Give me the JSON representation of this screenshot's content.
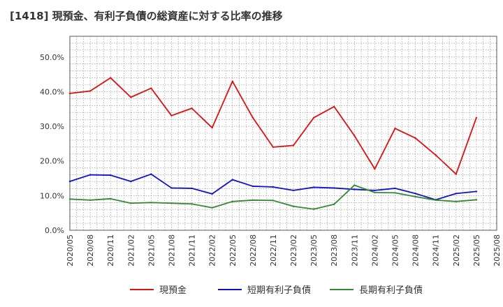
{
  "page": {
    "title": "[1418]  現預金、有利子負債の総資産に対する比率の推移"
  },
  "chart_data": {
    "type": "line",
    "title": "[1418]  現預金、有利子負債の総資産に対する比率の推移",
    "xlabel": "",
    "ylabel": "",
    "ylim": [
      0,
      0.56
    ],
    "yticks": [
      0,
      0.1,
      0.2,
      0.3,
      0.4,
      0.5
    ],
    "ytick_labels": [
      "0.0%",
      "10.0%",
      "20.0%",
      "30.0%",
      "40.0%",
      "50.0%"
    ],
    "grid": true,
    "legend_position": "bottom",
    "categories": [
      "2020/05",
      "2020/08",
      "2020/11",
      "2021/02",
      "2021/05",
      "2021/08",
      "2021/11",
      "2022/02",
      "2022/05",
      "2022/08",
      "2022/11",
      "2023/02",
      "2023/05",
      "2023/08",
      "2023/11",
      "2024/02",
      "2024/05",
      "2024/08",
      "2024/11",
      "2025/02",
      "2025/05",
      "2025/08"
    ],
    "series": [
      {
        "name": "現預金",
        "color": "#dd1111",
        "values": [
          0.395,
          0.402,
          0.44,
          0.384,
          0.41,
          0.331,
          0.352,
          0.296,
          0.43,
          0.325,
          0.24,
          0.245,
          0.325,
          0.357,
          0.273,
          0.177,
          0.294,
          0.266,
          0.217,
          0.162,
          0.325,
          null
        ]
      },
      {
        "name": "短期有利子負債",
        "color": "#1111cc",
        "values": [
          0.141,
          0.16,
          0.159,
          0.141,
          0.162,
          0.122,
          0.121,
          0.105,
          0.146,
          0.127,
          0.125,
          0.115,
          0.124,
          0.122,
          0.118,
          0.115,
          0.121,
          0.106,
          0.088,
          0.106,
          0.112,
          null
        ]
      },
      {
        "name": "長期有利子負債",
        "color": "#338833",
        "values": [
          0.09,
          0.087,
          0.091,
          0.078,
          0.08,
          0.078,
          0.076,
          0.065,
          0.083,
          0.087,
          0.086,
          0.069,
          0.061,
          0.075,
          0.13,
          0.109,
          0.108,
          0.097,
          0.087,
          0.083,
          0.088,
          null
        ]
      }
    ]
  }
}
